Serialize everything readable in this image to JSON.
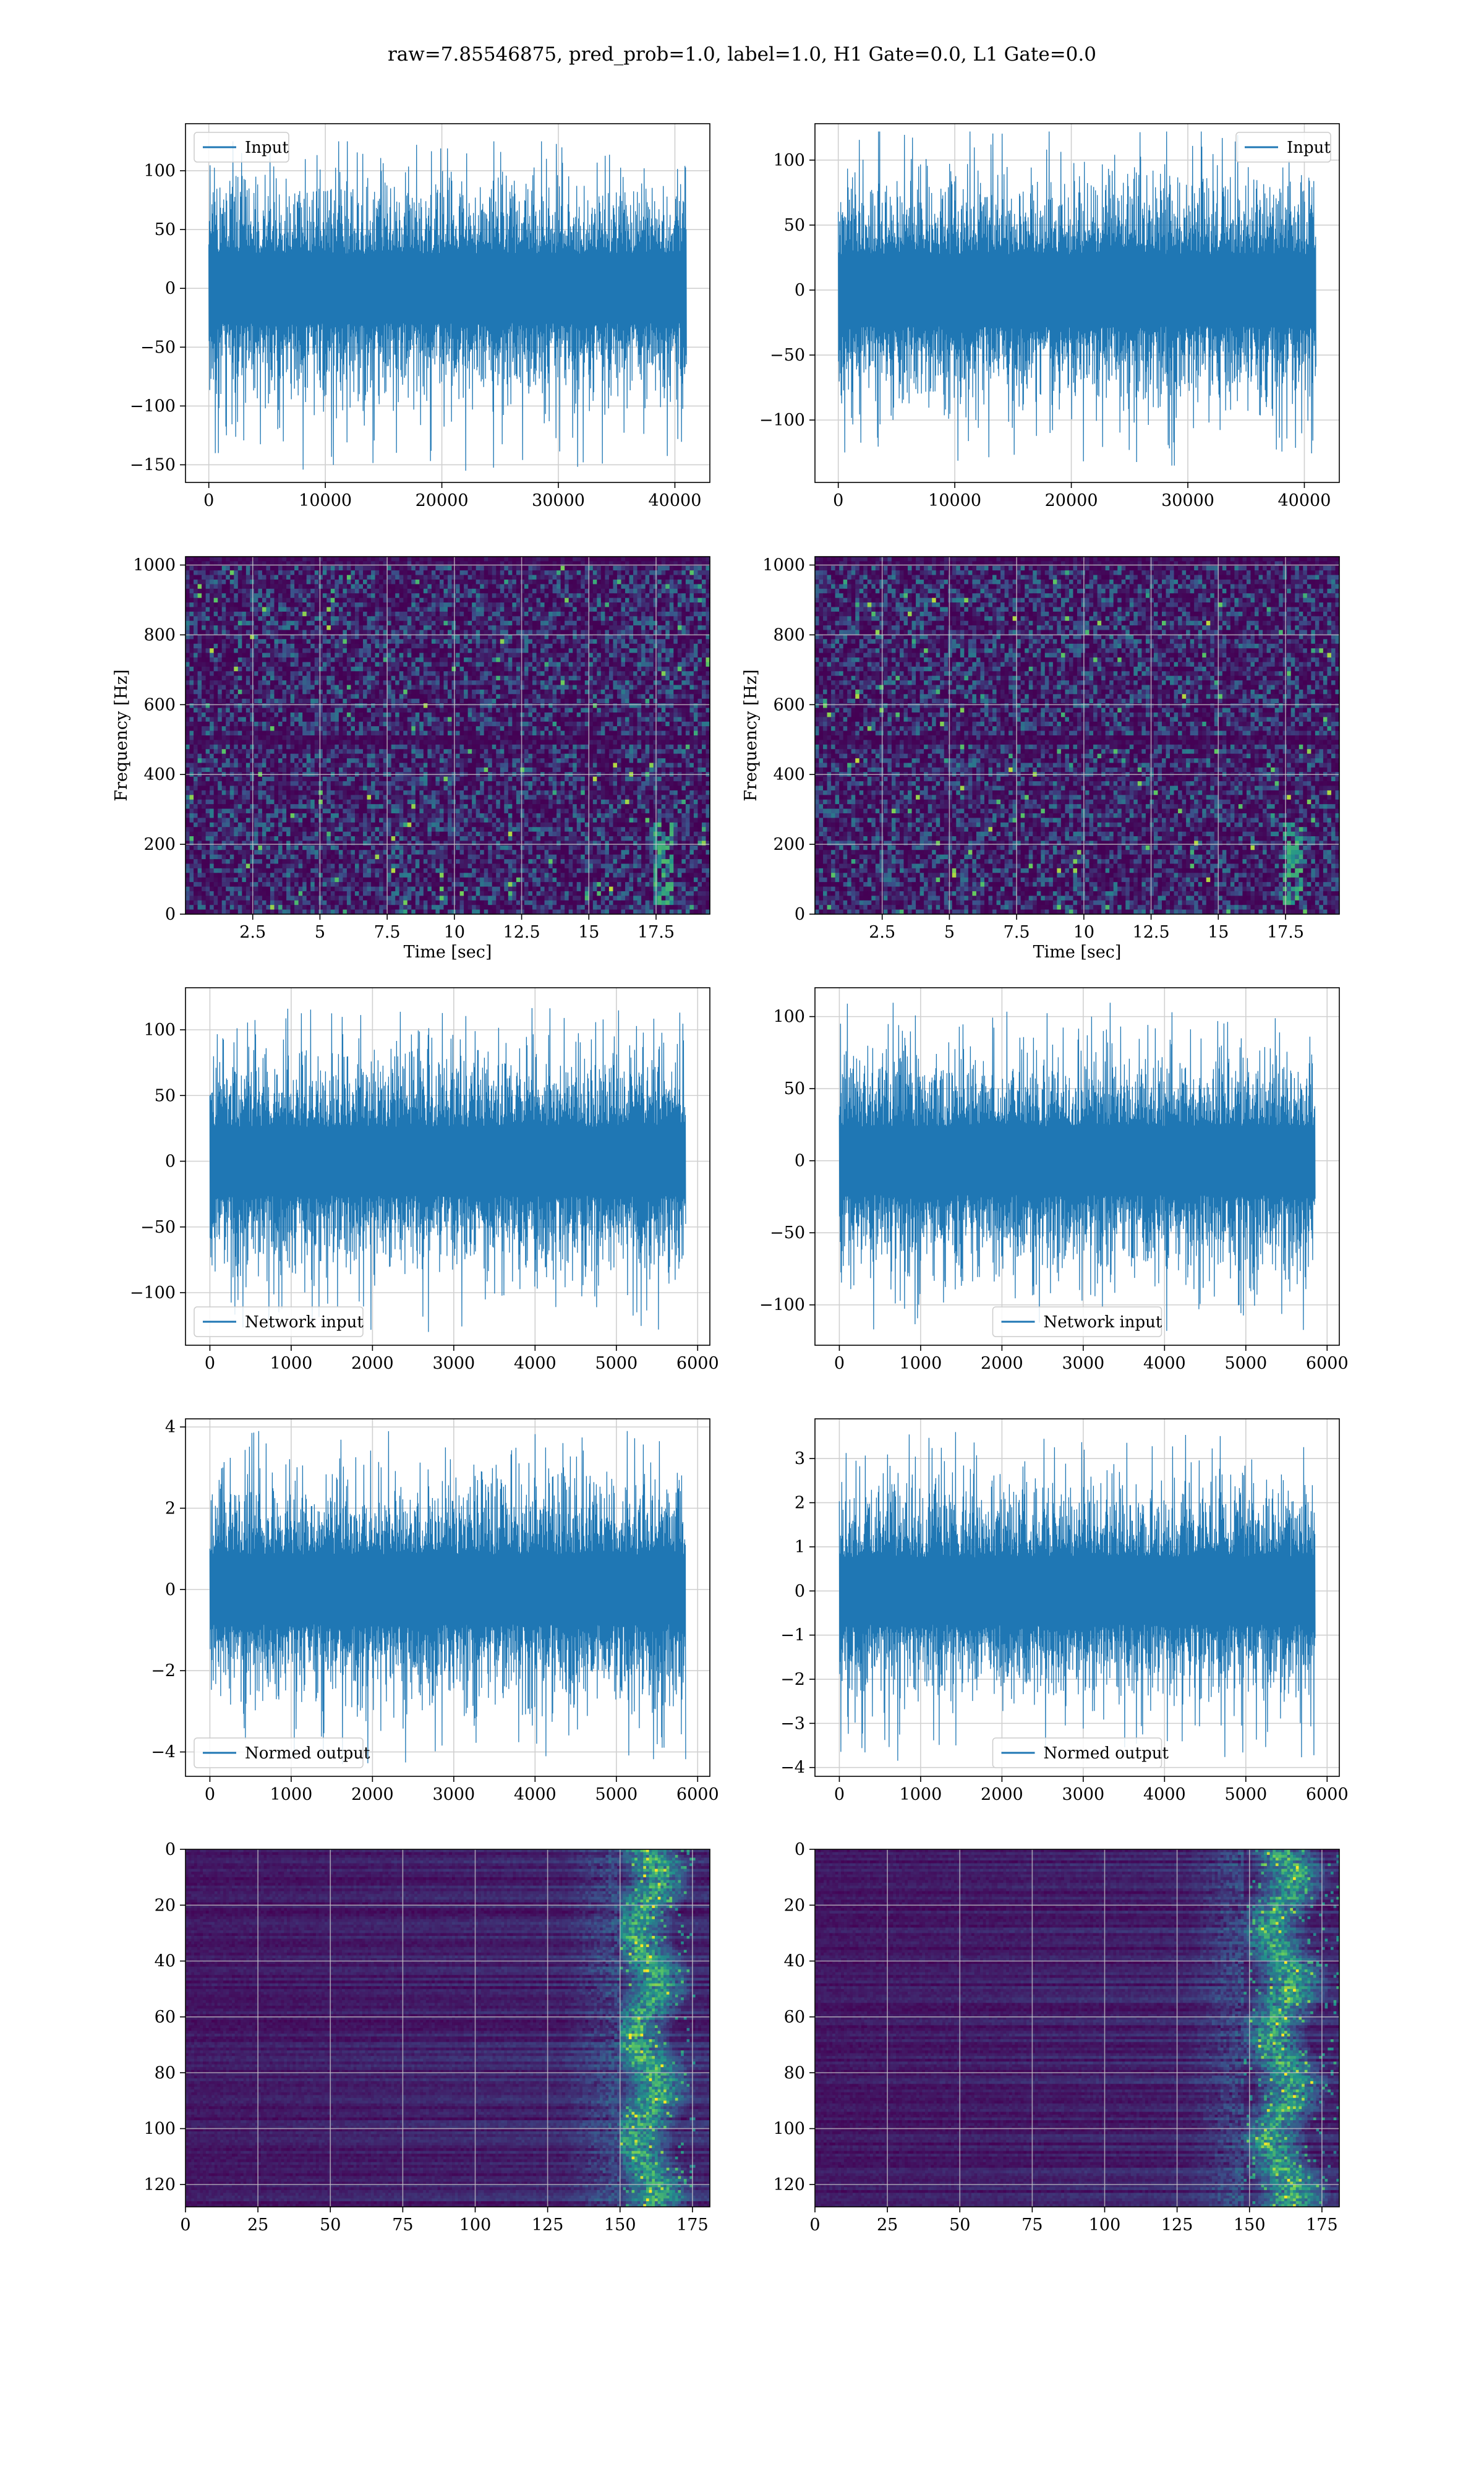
{
  "figure": {
    "title": "raw=7.85546875, pred_prob=1.0, label=1.0, H1 Gate=0.0, L1 Gate=0.0"
  },
  "colors": {
    "line": "#1f77b4",
    "grid": "#d0d0d0",
    "axes": "#000000",
    "heat_low": "#440154",
    "heat_mid": "#21918c",
    "heat_high": "#fde725"
  },
  "chart_data": [
    {
      "id": "input-h1",
      "type": "line",
      "series": [
        {
          "name": "Input"
        }
      ],
      "xlim": [
        -2000,
        43000
      ],
      "ylim": [
        -165,
        140
      ],
      "xticks": [
        0,
        10000,
        20000,
        30000,
        40000
      ],
      "yticks": [
        100,
        50,
        0,
        -50,
        -100,
        -150
      ],
      "signal": {
        "n": 40960,
        "x_end": 40960,
        "band": 62,
        "peak": 125,
        "trough": -155
      },
      "legend": "upper left",
      "grid": true
    },
    {
      "id": "input-l1",
      "type": "line",
      "series": [
        {
          "name": "Input"
        }
      ],
      "xlim": [
        -2000,
        43000
      ],
      "ylim": [
        -148,
        128
      ],
      "xticks": [
        0,
        10000,
        20000,
        30000,
        40000
      ],
      "yticks": [
        100,
        50,
        0,
        -50,
        -100
      ],
      "signal": {
        "n": 40960,
        "x_end": 40960,
        "band": 58,
        "peak": 122,
        "trough": -135
      },
      "legend": "upper right",
      "grid": true
    },
    {
      "id": "spectrogram-h1",
      "type": "heatmap",
      "xlabel": "Time [sec]",
      "ylabel": "Frequency [Hz]",
      "xlim": [
        0,
        19.5
      ],
      "ylim": [
        0,
        1024
      ],
      "xticks": [
        2.5,
        5.0,
        7.5,
        10.0,
        12.5,
        15.0,
        17.5
      ],
      "yticks": [
        0,
        200,
        400,
        600,
        800,
        1000
      ],
      "grid": true
    },
    {
      "id": "spectrogram-l1",
      "type": "heatmap",
      "xlabel": "Time [sec]",
      "ylabel": "Frequency [Hz]",
      "xlim": [
        0,
        19.5
      ],
      "ylim": [
        0,
        1024
      ],
      "xticks": [
        2.5,
        5.0,
        7.5,
        10.0,
        12.5,
        15.0,
        17.5
      ],
      "yticks": [
        0,
        200,
        400,
        600,
        800,
        1000
      ],
      "grid": true
    },
    {
      "id": "network-input-h1",
      "type": "line",
      "series": [
        {
          "name": "Network input"
        }
      ],
      "xlim": [
        -300,
        6150
      ],
      "ylim": [
        -140,
        132
      ],
      "xticks": [
        0,
        1000,
        2000,
        3000,
        4000,
        5000,
        6000
      ],
      "yticks": [
        100,
        50,
        0,
        -50,
        -100
      ],
      "signal": {
        "n": 5850,
        "x_end": 5850,
        "band": 55,
        "peak": 120,
        "trough": -130
      },
      "legend": "lower left",
      "grid": true
    },
    {
      "id": "network-input-l1",
      "type": "line",
      "series": [
        {
          "name": "Network input"
        }
      ],
      "xlim": [
        -300,
        6150
      ],
      "ylim": [
        -128,
        120
      ],
      "xticks": [
        0,
        1000,
        2000,
        3000,
        4000,
        5000,
        6000
      ],
      "yticks": [
        100,
        50,
        0,
        -50,
        -100
      ],
      "signal": {
        "n": 5850,
        "x_end": 5850,
        "band": 50,
        "peak": 110,
        "trough": -118
      },
      "legend": "lower center",
      "grid": true
    },
    {
      "id": "normed-output-h1",
      "type": "line",
      "series": [
        {
          "name": "Normed output"
        }
      ],
      "xlim": [
        -300,
        6150
      ],
      "ylim": [
        -4.6,
        4.2
      ],
      "xticks": [
        0,
        1000,
        2000,
        3000,
        4000,
        5000,
        6000
      ],
      "yticks": [
        4,
        2,
        0,
        -2,
        -4
      ],
      "signal": {
        "n": 5850,
        "x_end": 5850,
        "band": 1.8,
        "peak": 3.9,
        "trough": -4.3
      },
      "legend": "lower left",
      "grid": true
    },
    {
      "id": "normed-output-l1",
      "type": "line",
      "series": [
        {
          "name": "Normed output"
        }
      ],
      "xlim": [
        -300,
        6150
      ],
      "ylim": [
        -4.2,
        3.9
      ],
      "xticks": [
        0,
        1000,
        2000,
        3000,
        4000,
        5000,
        6000
      ],
      "yticks": [
        3,
        2,
        1,
        0,
        -1,
        -2,
        -3,
        -4
      ],
      "signal": {
        "n": 5850,
        "x_end": 5850,
        "band": 1.6,
        "peak": 3.6,
        "trough": -3.9
      },
      "legend": "lower center",
      "grid": true
    },
    {
      "id": "feature-map-h1",
      "type": "heatmap",
      "xlim": [
        0,
        181
      ],
      "ylim": [
        128,
        0
      ],
      "xticks": [
        0,
        25,
        50,
        75,
        100,
        125,
        150,
        175
      ],
      "yticks": [
        0,
        20,
        40,
        60,
        80,
        100,
        120
      ],
      "hot_columns": [
        150,
        175
      ],
      "grid": true
    },
    {
      "id": "feature-map-l1",
      "type": "heatmap",
      "xlim": [
        0,
        181
      ],
      "ylim": [
        128,
        0
      ],
      "xticks": [
        0,
        25,
        50,
        75,
        100,
        125,
        150,
        175
      ],
      "yticks": [
        0,
        20,
        40,
        60,
        80,
        100,
        120
      ],
      "hot_columns": [
        148,
        181
      ],
      "grid": true
    }
  ]
}
